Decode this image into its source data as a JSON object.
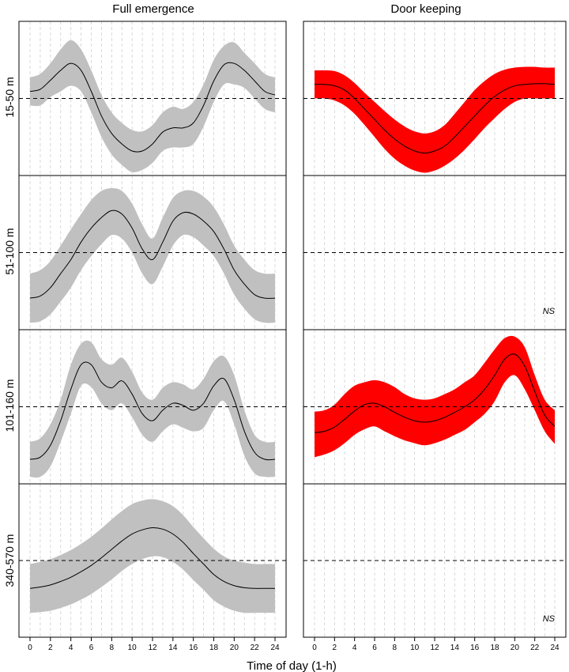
{
  "chart_data": {
    "type": "line",
    "columns": [
      "Full emergence",
      "Door keeping"
    ],
    "rows": [
      "15-50 m",
      "51-100 m",
      "101-160 m",
      "340-570 m"
    ],
    "xlabel": "Time of day (1-h)",
    "xlim": [
      0,
      24
    ],
    "x_ticks": [
      "0",
      "2",
      "4",
      "6",
      "8",
      "10",
      "12",
      "14",
      "16",
      "18",
      "20",
      "22",
      "24"
    ],
    "x": [
      0,
      1,
      2,
      3,
      4,
      5,
      6,
      7,
      8,
      9,
      10,
      11,
      12,
      13,
      14,
      15,
      16,
      17,
      18,
      19,
      20,
      21,
      22,
      23,
      24
    ],
    "ylim": [
      -1.1,
      1.1
    ],
    "reference_line": 0,
    "ns_text": "NS",
    "band_colors": {
      "Full emergence": "#c0c0c0",
      "Door keeping": "#ff0000"
    },
    "panels": [
      {
        "row": "15-50 m",
        "column": "Full emergence",
        "significant": true,
        "mean": [
          0.1,
          0.13,
          0.26,
          0.4,
          0.5,
          0.4,
          0.1,
          -0.25,
          -0.5,
          -0.65,
          -0.75,
          -0.75,
          -0.65,
          -0.48,
          -0.42,
          -0.42,
          -0.35,
          -0.1,
          0.25,
          0.48,
          0.5,
          0.4,
          0.25,
          0.1,
          0.05
        ],
        "upper": [
          0.3,
          0.35,
          0.5,
          0.7,
          0.83,
          0.7,
          0.4,
          0.05,
          -0.2,
          -0.35,
          -0.45,
          -0.47,
          -0.38,
          -0.2,
          -0.12,
          -0.15,
          -0.05,
          0.2,
          0.55,
          0.75,
          0.8,
          0.65,
          0.5,
          0.35,
          0.3
        ],
        "lower": [
          -0.1,
          -0.1,
          0.02,
          0.1,
          0.18,
          0.1,
          -0.2,
          -0.55,
          -0.8,
          -0.95,
          -1.05,
          -1.02,
          -0.92,
          -0.75,
          -0.7,
          -0.7,
          -0.65,
          -0.4,
          -0.05,
          0.2,
          0.2,
          0.15,
          0.0,
          -0.15,
          -0.2
        ]
      },
      {
        "row": "15-50 m",
        "column": "Door keeping",
        "significant": true,
        "mean": [
          0.2,
          0.2,
          0.18,
          0.12,
          0.0,
          -0.15,
          -0.3,
          -0.45,
          -0.58,
          -0.68,
          -0.75,
          -0.78,
          -0.75,
          -0.68,
          -0.55,
          -0.4,
          -0.25,
          -0.1,
          0.03,
          0.12,
          0.18,
          0.2,
          0.21,
          0.21,
          0.2
        ],
        "upper": [
          0.4,
          0.4,
          0.39,
          0.33,
          0.22,
          0.08,
          -0.05,
          -0.18,
          -0.3,
          -0.4,
          -0.47,
          -0.5,
          -0.47,
          -0.38,
          -0.22,
          -0.05,
          0.12,
          0.25,
          0.35,
          0.41,
          0.44,
          0.45,
          0.45,
          0.44,
          0.44
        ],
        "lower": [
          0.0,
          0.0,
          -0.03,
          -0.1,
          -0.22,
          -0.38,
          -0.55,
          -0.72,
          -0.86,
          -0.96,
          -1.03,
          -1.06,
          -1.03,
          -0.96,
          -0.86,
          -0.73,
          -0.58,
          -0.42,
          -0.28,
          -0.15,
          -0.05,
          0.0,
          0.0,
          0.0,
          0.0
        ]
      },
      {
        "row": "51-100 m",
        "column": "Full emergence",
        "significant": true,
        "mean": [
          -0.65,
          -0.62,
          -0.5,
          -0.3,
          -0.1,
          0.15,
          0.35,
          0.5,
          0.6,
          0.55,
          0.35,
          0.05,
          -0.1,
          0.15,
          0.45,
          0.57,
          0.55,
          0.45,
          0.3,
          0.05,
          -0.25,
          -0.45,
          -0.6,
          -0.65,
          -0.65
        ],
        "upper": [
          -0.3,
          -0.25,
          -0.12,
          0.1,
          0.33,
          0.55,
          0.75,
          0.88,
          0.92,
          0.88,
          0.7,
          0.4,
          0.2,
          0.5,
          0.78,
          0.88,
          0.88,
          0.8,
          0.65,
          0.4,
          0.1,
          -0.1,
          -0.25,
          -0.3,
          -0.3
        ],
        "lower": [
          -1.0,
          -0.98,
          -0.88,
          -0.7,
          -0.5,
          -0.25,
          -0.05,
          0.12,
          0.25,
          0.2,
          0.0,
          -0.3,
          -0.45,
          -0.2,
          0.1,
          0.25,
          0.22,
          0.1,
          -0.05,
          -0.3,
          -0.6,
          -0.8,
          -0.95,
          -1.0,
          -1.0
        ]
      },
      {
        "row": "51-100 m",
        "column": "Door keeping",
        "significant": false
      },
      {
        "row": "101-160 m",
        "column": "Full emergence",
        "significant": true,
        "mean": [
          -0.75,
          -0.72,
          -0.55,
          -0.2,
          0.25,
          0.6,
          0.6,
          0.35,
          0.27,
          0.37,
          0.18,
          -0.1,
          -0.2,
          -0.05,
          0.05,
          0.02,
          -0.05,
          0.05,
          0.3,
          0.4,
          0.1,
          -0.35,
          -0.65,
          -0.75,
          -0.75
        ],
        "upper": [
          -0.5,
          -0.45,
          -0.25,
          0.1,
          0.6,
          0.9,
          0.92,
          0.68,
          0.6,
          0.7,
          0.5,
          0.2,
          0.1,
          0.27,
          0.35,
          0.32,
          0.25,
          0.4,
          0.65,
          0.72,
          0.45,
          -0.05,
          -0.4,
          -0.5,
          -0.5
        ],
        "lower": [
          -1.0,
          -1.0,
          -0.85,
          -0.5,
          -0.1,
          0.3,
          0.28,
          0.05,
          -0.05,
          0.05,
          -0.15,
          -0.4,
          -0.5,
          -0.35,
          -0.25,
          -0.3,
          -0.35,
          -0.3,
          -0.05,
          0.08,
          -0.25,
          -0.7,
          -0.95,
          -1.0,
          -1.0
        ]
      },
      {
        "row": "101-160 m",
        "column": "Door keeping",
        "significant": true,
        "mean": [
          -0.37,
          -0.35,
          -0.29,
          -0.18,
          -0.06,
          0.03,
          0.05,
          0.0,
          -0.08,
          -0.15,
          -0.2,
          -0.22,
          -0.2,
          -0.15,
          -0.08,
          0.0,
          0.1,
          0.25,
          0.45,
          0.68,
          0.75,
          0.58,
          0.22,
          -0.12,
          -0.28
        ],
        "upper": [
          -0.07,
          -0.05,
          0.03,
          0.18,
          0.3,
          0.35,
          0.38,
          0.35,
          0.28,
          0.18,
          0.12,
          0.1,
          0.12,
          0.18,
          0.25,
          0.35,
          0.45,
          0.63,
          0.82,
          0.98,
          1.0,
          0.85,
          0.45,
          0.1,
          -0.05
        ],
        "lower": [
          -0.72,
          -0.68,
          -0.62,
          -0.52,
          -0.4,
          -0.32,
          -0.28,
          -0.35,
          -0.42,
          -0.48,
          -0.52,
          -0.55,
          -0.52,
          -0.47,
          -0.4,
          -0.33,
          -0.22,
          -0.1,
          0.08,
          0.35,
          0.45,
          0.25,
          -0.05,
          -0.35,
          -0.53
        ]
      },
      {
        "row": "340-570 m",
        "column": "Full emergence",
        "significant": true,
        "mean": [
          -0.4,
          -0.38,
          -0.35,
          -0.3,
          -0.24,
          -0.16,
          -0.07,
          0.04,
          0.16,
          0.28,
          0.38,
          0.44,
          0.47,
          0.45,
          0.38,
          0.26,
          0.1,
          -0.05,
          -0.2,
          -0.3,
          -0.36,
          -0.39,
          -0.4,
          -0.4,
          -0.4
        ],
        "upper": [
          -0.05,
          -0.02,
          0.02,
          0.08,
          0.15,
          0.24,
          0.34,
          0.46,
          0.59,
          0.71,
          0.81,
          0.86,
          0.88,
          0.85,
          0.78,
          0.65,
          0.48,
          0.32,
          0.17,
          0.06,
          0.0,
          -0.03,
          -0.05,
          -0.05,
          -0.05
        ],
        "lower": [
          -0.75,
          -0.74,
          -0.72,
          -0.68,
          -0.63,
          -0.56,
          -0.48,
          -0.38,
          -0.27,
          -0.15,
          -0.05,
          0.02,
          0.06,
          0.05,
          -0.02,
          -0.13,
          -0.28,
          -0.42,
          -0.57,
          -0.66,
          -0.72,
          -0.75,
          -0.75,
          -0.75,
          -0.75
        ]
      },
      {
        "row": "340-570 m",
        "column": "Door keeping",
        "significant": false
      }
    ]
  }
}
